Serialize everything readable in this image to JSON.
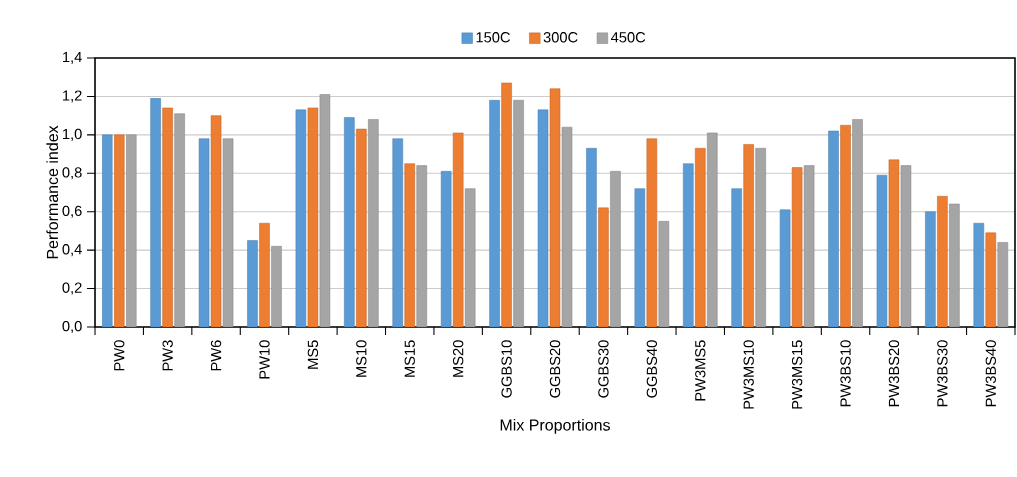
{
  "chart_data": {
    "type": "bar",
    "xlabel": "Mix Proportions",
    "ylabel": "Performance index",
    "categories": [
      "PW0",
      "PW3",
      "PW6",
      "PW10",
      "MS5",
      "MS10",
      "MS15",
      "MS20",
      "GGBS10",
      "GGBS20",
      "GGBS30",
      "GGBS40",
      "PW3MS5",
      "PW3MS10",
      "PW3MS15",
      "PW3BS10",
      "PW3BS20",
      "PW3BS30",
      "PW3BS40"
    ],
    "series": [
      {
        "name": "150C",
        "color": "#5b9bd5",
        "values": [
          1.0,
          1.19,
          0.98,
          0.45,
          1.13,
          1.09,
          0.98,
          0.81,
          1.18,
          1.13,
          0.93,
          0.72,
          0.85,
          0.72,
          0.61,
          1.02,
          0.79,
          0.6,
          0.54
        ]
      },
      {
        "name": "300C",
        "color": "#ed7d31",
        "values": [
          1.0,
          1.14,
          1.1,
          0.54,
          1.14,
          1.03,
          0.85,
          1.01,
          1.27,
          1.24,
          0.62,
          0.98,
          0.93,
          0.95,
          0.83,
          1.05,
          0.87,
          0.68,
          0.49
        ]
      },
      {
        "name": "450C",
        "color": "#a5a5a5",
        "values": [
          1.0,
          1.11,
          0.98,
          0.42,
          1.21,
          1.08,
          0.84,
          0.72,
          1.18,
          1.04,
          0.81,
          0.55,
          1.01,
          0.93,
          0.84,
          1.08,
          0.84,
          0.64,
          0.44
        ]
      }
    ],
    "ylim": [
      0,
      1.4
    ],
    "yticks": [
      {
        "value": 0,
        "label": "0,0"
      },
      {
        "value": 0.2,
        "label": "0,2"
      },
      {
        "value": 0.4,
        "label": "0,4"
      },
      {
        "value": 0.6,
        "label": "0,6"
      },
      {
        "value": 0.8,
        "label": "0,8"
      },
      {
        "value": 1.0,
        "label": "1,0"
      },
      {
        "value": 1.2,
        "label": "1,2"
      },
      {
        "value": 1.4,
        "label": "1,4"
      }
    ],
    "grid": "y",
    "legend": "top"
  }
}
